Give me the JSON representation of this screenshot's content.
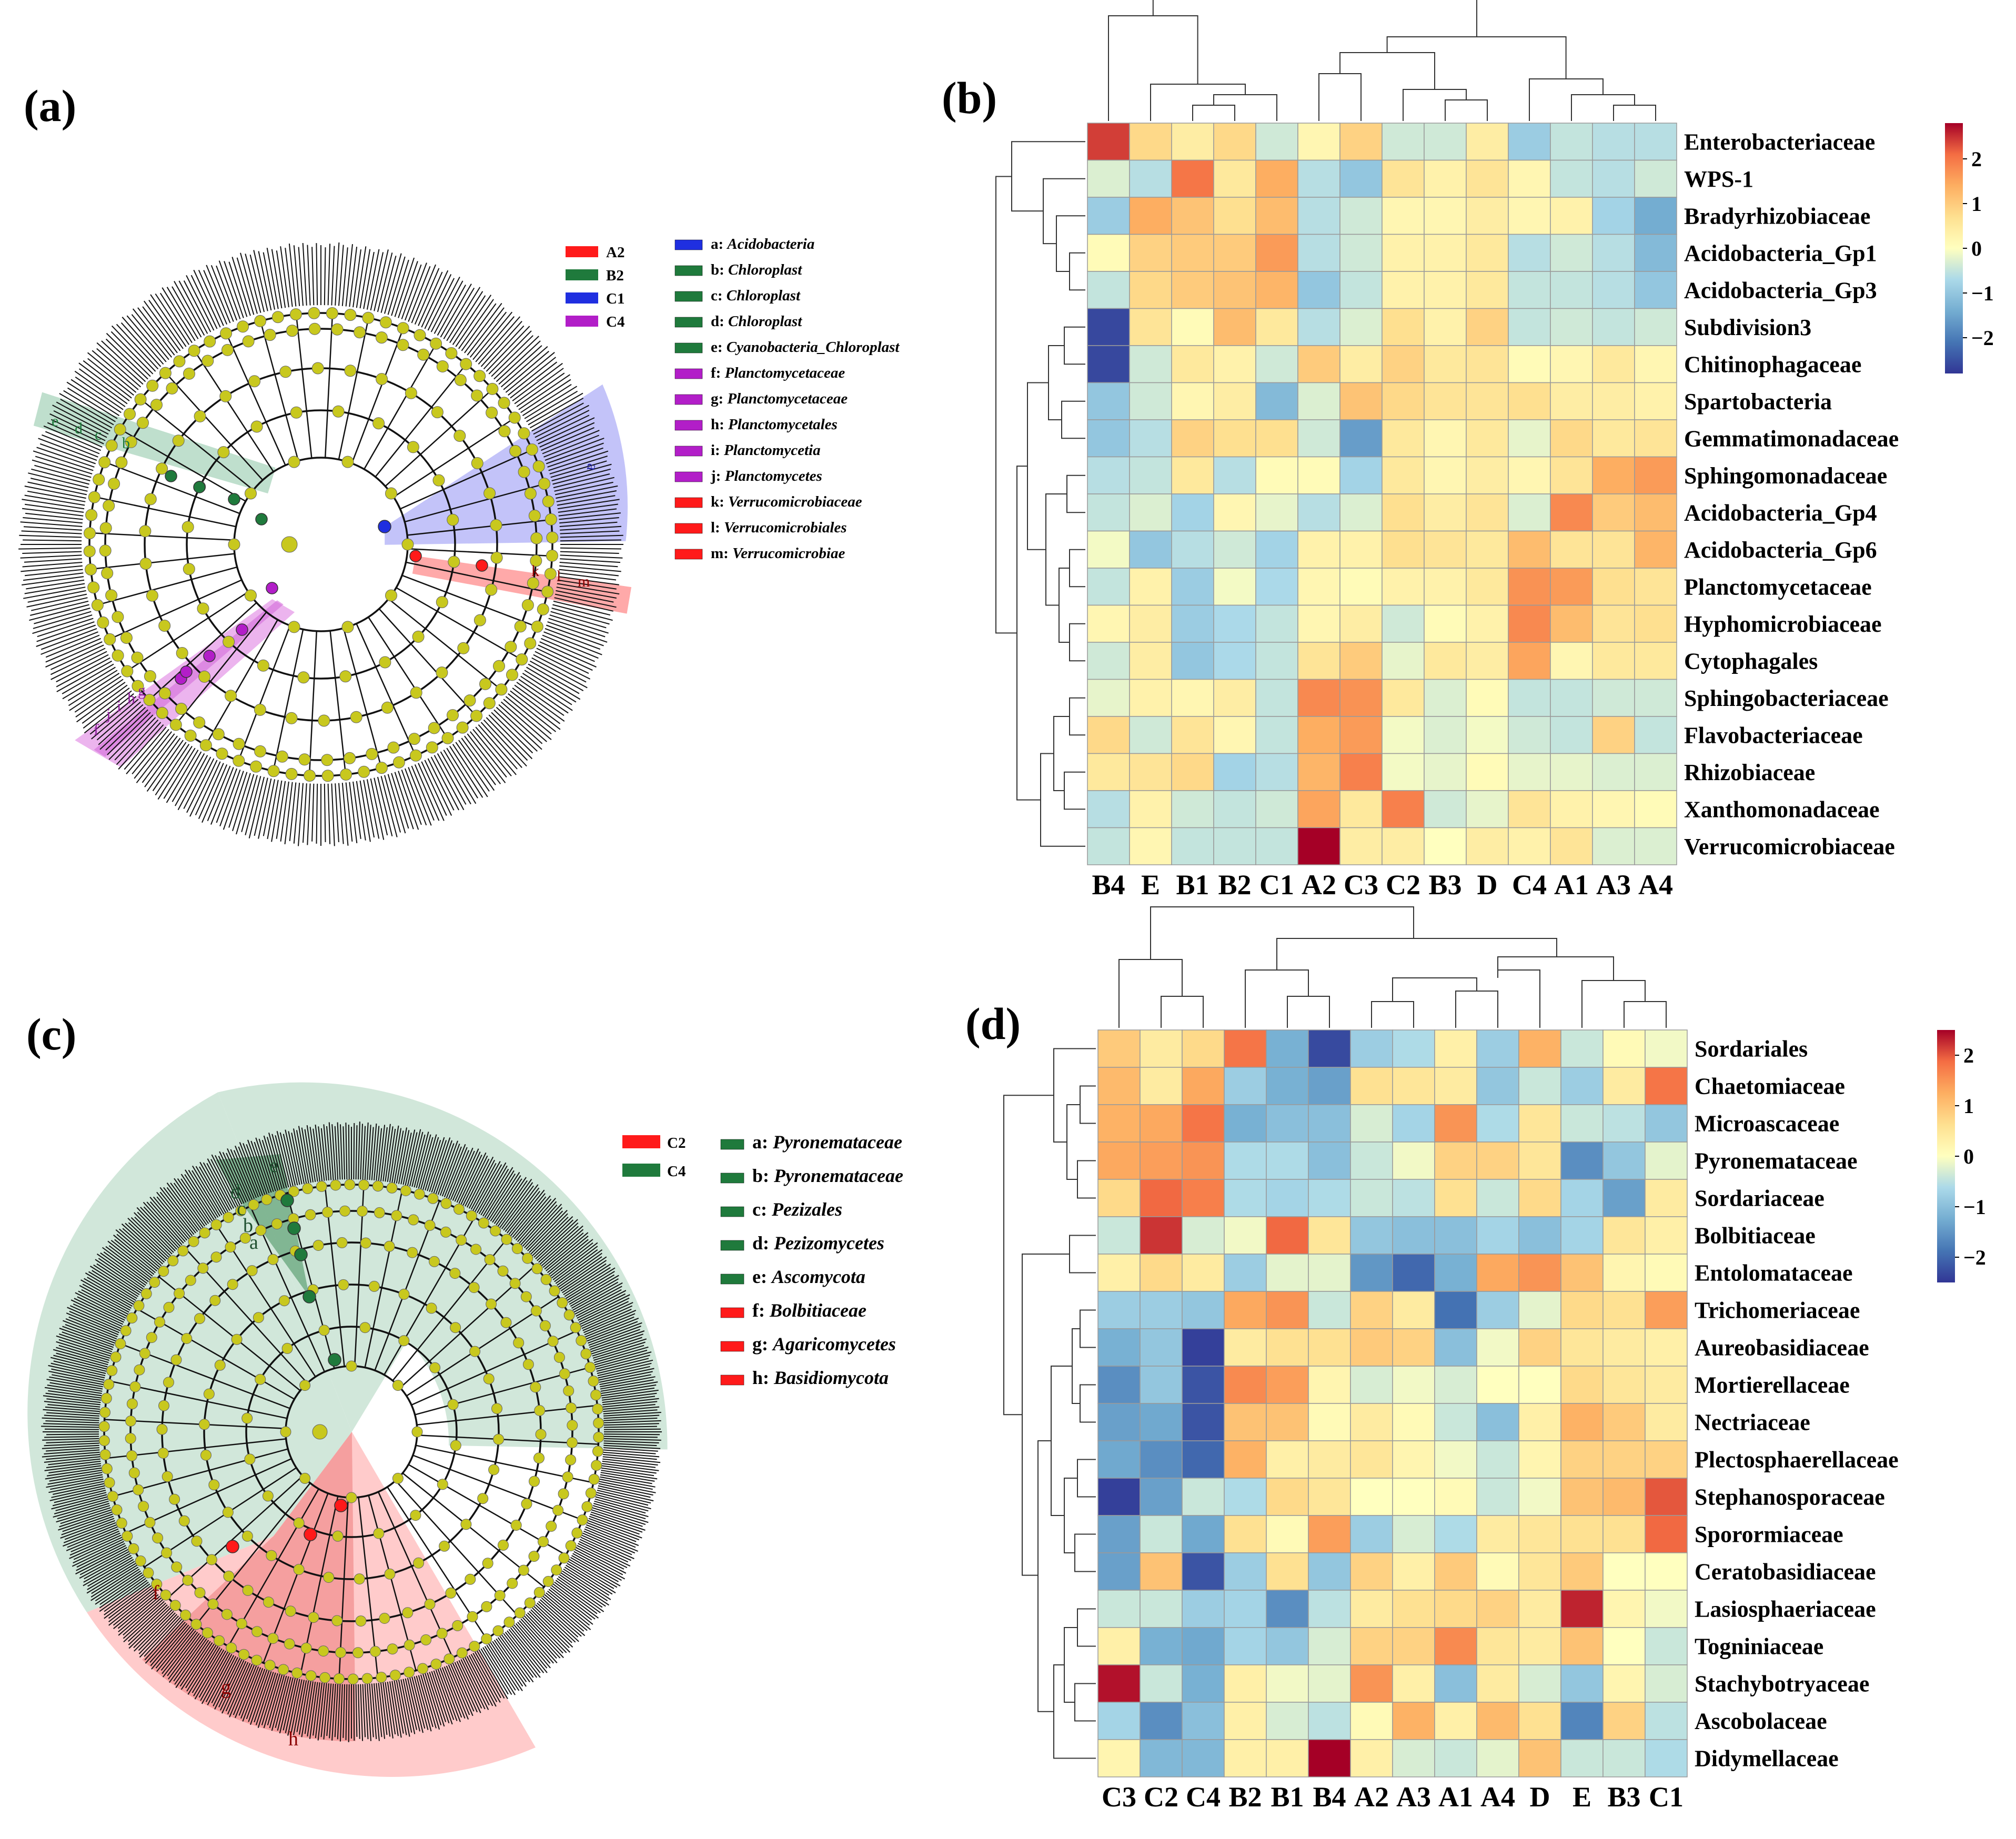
{
  "panels": {
    "a": "(a)",
    "b": "(b)",
    "c": "(c)",
    "d": "(d)"
  },
  "colors": {
    "red": "#ff1a1a",
    "green": "#1f7a3c",
    "blue": "#1f2fe0",
    "magenta": "#b21ec8",
    "node": "#c8c81e"
  },
  "panel_a": {
    "group_legend": [
      {
        "label": "A2",
        "color": "#ff1a1a"
      },
      {
        "label": "B2",
        "color": "#1f7a3c"
      },
      {
        "label": "C1",
        "color": "#1f2fe0"
      },
      {
        "label": "C4",
        "color": "#b21ec8"
      }
    ],
    "taxa_legend": [
      {
        "key": "a:",
        "name": "Acidobacteria",
        "color": "#1f2fe0"
      },
      {
        "key": "b:",
        "name": "Chloroplast",
        "color": "#1f7a3c"
      },
      {
        "key": "c:",
        "name": "Chloroplast",
        "color": "#1f7a3c"
      },
      {
        "key": "d:",
        "name": "Chloroplast",
        "color": "#1f7a3c"
      },
      {
        "key": "e:",
        "name": "Cyanobacteria_Chloroplast",
        "color": "#1f7a3c"
      },
      {
        "key": "f:",
        "name": "Planctomycetaceae",
        "color": "#b21ec8"
      },
      {
        "key": "g:",
        "name": "Planctomycetaceae",
        "color": "#b21ec8"
      },
      {
        "key": "h:",
        "name": "Planctomycetales",
        "color": "#b21ec8"
      },
      {
        "key": "i:",
        "name": "Planctomycetia",
        "color": "#b21ec8"
      },
      {
        "key": "j:",
        "name": "Planctomycetes",
        "color": "#b21ec8"
      },
      {
        "key": "k:",
        "name": "Verrucomicrobiaceae",
        "color": "#ff1a1a"
      },
      {
        "key": "l:",
        "name": "Verrucomicrobiales",
        "color": "#ff1a1a"
      },
      {
        "key": "m:",
        "name": "Verrucomicrobiae",
        "color": "#ff1a1a"
      }
    ],
    "letters": [
      "a",
      "b",
      "c",
      "d",
      "e",
      "f",
      "g",
      "h",
      "i",
      "j",
      "k",
      "l",
      "m"
    ]
  },
  "panel_c": {
    "group_legend": [
      {
        "label": "C2",
        "color": "#ff1a1a"
      },
      {
        "label": "C4",
        "color": "#1f7a3c"
      }
    ],
    "taxa_legend": [
      {
        "key": "a:",
        "name": "Pyronemataceae",
        "color": "#1f7a3c"
      },
      {
        "key": "b:",
        "name": "Pyronemataceae",
        "color": "#1f7a3c"
      },
      {
        "key": "c:",
        "name": "Pezizales",
        "color": "#1f7a3c"
      },
      {
        "key": "d:",
        "name": "Pezizomycetes",
        "color": "#1f7a3c"
      },
      {
        "key": "e:",
        "name": "Ascomycota",
        "color": "#1f7a3c"
      },
      {
        "key": "f:",
        "name": "Bolbitiaceae",
        "color": "#ff1a1a"
      },
      {
        "key": "g:",
        "name": "Agaricomycetes",
        "color": "#ff1a1a"
      },
      {
        "key": "h:",
        "name": "Basidiomycota",
        "color": "#ff1a1a"
      }
    ],
    "letters": [
      "a",
      "b",
      "c",
      "d",
      "e",
      "f",
      "g",
      "h"
    ]
  },
  "chart_data": [
    {
      "type": "heatmap",
      "panel": "(b)",
      "columns": [
        "B4",
        "E",
        "B1",
        "B2",
        "C1",
        "A2",
        "C3",
        "C2",
        "B3",
        "D",
        "C4",
        "A1",
        "A3",
        "A4"
      ],
      "rows": [
        "Enterobacteriaceae",
        "WPS-1",
        "Bradyrhizobiaceae",
        "Acidobacteria_Gp1",
        "Acidobacteria_Gp3",
        "Subdivision3",
        "Chitinophagaceae",
        "Spartobacteria",
        "Gemmatimonadaceae",
        "Sphingomonadaceae",
        "Acidobacteria_Gp4",
        "Acidobacteria_Gp6",
        "Planctomycetaceae",
        "Hyphomicrobiaceae",
        "Cytophagales",
        "Sphingobacteriaceae",
        "Flavobacteriaceae",
        "Rhizobiaceae",
        "Xanthomonadaceae",
        "Verrucomicrobiaceae"
      ],
      "values": [
        [
          2.4,
          0.8,
          0.4,
          0.8,
          -0.4,
          0.2,
          0.9,
          -0.4,
          -0.4,
          0.4,
          -0.9,
          -0.5,
          -0.6,
          -0.6
        ],
        [
          -0.3,
          -0.6,
          2.0,
          0.5,
          1.4,
          -0.6,
          -1.0,
          0.6,
          0.3,
          0.6,
          0.2,
          -0.5,
          -0.6,
          -0.4
        ],
        [
          -0.9,
          1.4,
          1.1,
          0.7,
          1.2,
          -0.6,
          -0.4,
          0.2,
          0.2,
          0.4,
          0.2,
          0.3,
          -0.8,
          -1.4
        ],
        [
          0.1,
          0.9,
          1.0,
          1.0,
          1.6,
          -0.6,
          -0.4,
          0.3,
          0.3,
          0.5,
          -0.6,
          -0.4,
          -0.6,
          -1.2
        ],
        [
          -0.5,
          0.8,
          1.0,
          1.1,
          1.3,
          -1.0,
          -0.5,
          0.3,
          0.3,
          0.5,
          -0.5,
          -0.5,
          -0.6,
          -1.0
        ],
        [
          -2.6,
          0.6,
          0.1,
          1.2,
          0.5,
          -0.6,
          -0.3,
          0.7,
          0.3,
          0.9,
          -0.5,
          -0.4,
          -0.5,
          -0.4
        ],
        [
          -2.6,
          -0.4,
          0.5,
          0.3,
          -0.4,
          1.0,
          0.4,
          0.9,
          0.5,
          0.6,
          0.1,
          0.2,
          0.5,
          0.2
        ],
        [
          -1.0,
          -0.4,
          0.2,
          0.4,
          -1.2,
          -0.3,
          1.1,
          0.8,
          0.6,
          0.6,
          0.7,
          0.4,
          0.4,
          0.3
        ],
        [
          -1.0,
          -0.6,
          0.9,
          0.7,
          0.7,
          -0.4,
          -1.6,
          0.5,
          0.2,
          0.5,
          -0.2,
          0.8,
          0.5,
          0.6
        ],
        [
          -0.6,
          -0.5,
          0.5,
          -0.6,
          0.1,
          0.1,
          -0.8,
          0.5,
          0.2,
          0.4,
          0.2,
          0.6,
          1.4,
          1.6
        ],
        [
          -0.5,
          -0.3,
          -0.8,
          0.2,
          -0.2,
          -0.6,
          -0.3,
          0.7,
          0.4,
          0.6,
          -0.3,
          1.8,
          1.0,
          1.2
        ],
        [
          -0.1,
          -1.0,
          -0.6,
          -0.4,
          -0.8,
          0.3,
          0.3,
          0.7,
          0.6,
          0.5,
          1.2,
          0.6,
          0.6,
          1.3
        ],
        [
          -0.5,
          0.3,
          -0.9,
          -0.1,
          -0.7,
          0.2,
          0.1,
          0.3,
          0.3,
          0.5,
          1.7,
          1.6,
          0.7,
          0.6
        ],
        [
          0.2,
          0.4,
          -0.9,
          -0.7,
          -0.5,
          0.2,
          0.4,
          -0.4,
          0.1,
          0.3,
          1.8,
          1.2,
          0.6,
          0.7
        ],
        [
          -0.4,
          0.4,
          -1.0,
          -0.7,
          -0.5,
          0.6,
          1.0,
          -0.2,
          0.5,
          0.4,
          1.5,
          0.2,
          0.5,
          0.5
        ],
        [
          -0.2,
          0.3,
          0.2,
          0.4,
          -0.5,
          1.8,
          1.7,
          0.5,
          -0.3,
          0.1,
          -0.5,
          -0.5,
          -0.4,
          -0.4
        ],
        [
          0.8,
          -0.4,
          0.6,
          0.2,
          -0.5,
          1.4,
          1.6,
          -0.1,
          -0.3,
          -0.1,
          -0.4,
          -0.5,
          0.9,
          -0.5
        ],
        [
          0.5,
          0.6,
          0.8,
          -0.8,
          -0.6,
          1.3,
          1.9,
          -0.1,
          -0.2,
          0.1,
          -0.2,
          -0.2,
          -0.3,
          -0.3
        ],
        [
          -0.6,
          0.3,
          -0.4,
          -0.5,
          -0.4,
          1.5,
          0.5,
          1.9,
          -0.4,
          -0.2,
          0.6,
          0.3,
          0.2,
          0.1
        ],
        [
          -0.5,
          0.2,
          -0.5,
          -0.5,
          -0.5,
          2.8,
          0.4,
          0.4,
          0.0,
          0.4,
          0.3,
          0.6,
          -0.3,
          -0.3
        ]
      ],
      "colorbar": {
        "ticks": [
          2,
          1,
          0,
          -1,
          -2
        ],
        "tick_labels": [
          "2",
          "1",
          "0",
          "−1",
          "−2"
        ],
        "range": [
          -2.8,
          2.8
        ]
      }
    },
    {
      "type": "heatmap",
      "panel": "(d)",
      "columns": [
        "C3",
        "C2",
        "C4",
        "B2",
        "B1",
        "B4",
        "A2",
        "A3",
        "A1",
        "A4",
        "D",
        "E",
        "B3",
        "C1"
      ],
      "rows": [
        "Sordariales",
        "Chaetomiaceae",
        "Microascaceae",
        "Pyronemataceae",
        "Sordariaceae",
        "Bolbitiaceae",
        "Entolomataceae",
        "Trichomeriaceae",
        "Aureobasidiaceae",
        "Mortierellaceae",
        "Nectriaceae",
        "Plectosphaerellaceae",
        "Stephanosporaceae",
        "Sporormiaceae",
        "Ceratobasidiaceae",
        "Lasiosphaeriaceae",
        "Togniniaceae",
        "Stachybotryaceae",
        "Ascobolaceae",
        "Didymellaceae"
      ],
      "values": [
        [
          0.9,
          0.4,
          0.7,
          1.8,
          -1.2,
          -2.3,
          -0.8,
          -0.6,
          0.3,
          -0.8,
          1.2,
          -0.4,
          0.1,
          -0.1
        ],
        [
          1.1,
          0.4,
          1.3,
          -0.8,
          -1.2,
          -1.4,
          0.6,
          0.5,
          0.4,
          -0.9,
          -0.4,
          -0.8,
          0.4,
          1.8
        ],
        [
          1.2,
          1.3,
          1.8,
          -1.2,
          -1.0,
          -1.0,
          -0.3,
          -0.7,
          1.5,
          -0.6,
          0.5,
          -0.4,
          -0.5,
          -0.9
        ],
        [
          1.3,
          1.4,
          1.5,
          -0.6,
          -0.6,
          -1.0,
          -0.4,
          -0.1,
          0.8,
          0.8,
          0.5,
          -1.6,
          -0.9,
          -0.2
        ],
        [
          0.7,
          1.9,
          1.7,
          -0.6,
          -0.7,
          -0.6,
          -0.4,
          -0.5,
          0.6,
          -0.4,
          0.7,
          -0.7,
          -1.4,
          0.4
        ],
        [
          -0.4,
          2.2,
          -0.3,
          -0.1,
          1.9,
          0.5,
          -0.9,
          -1.0,
          -1.0,
          -0.7,
          -1.0,
          -0.7,
          0.5,
          0.3
        ],
        [
          0.3,
          0.7,
          0.4,
          -0.8,
          -0.2,
          -0.2,
          -1.5,
          -2.0,
          -1.2,
          1.3,
          1.5,
          1.0,
          0.2,
          0.1
        ],
        [
          -0.8,
          -0.8,
          -0.9,
          1.3,
          1.5,
          -0.4,
          0.8,
          0.4,
          -1.9,
          -0.8,
          -0.2,
          0.7,
          0.6,
          1.4
        ],
        [
          -1.2,
          -0.9,
          -2.4,
          0.4,
          0.6,
          0.6,
          0.9,
          0.8,
          -1.0,
          -0.1,
          0.8,
          0.5,
          0.4,
          0.3
        ],
        [
          -1.6,
          -0.9,
          -2.2,
          1.6,
          1.4,
          0.2,
          -0.3,
          -0.1,
          -0.3,
          0.0,
          0.0,
          0.7,
          0.5,
          0.4
        ],
        [
          -1.4,
          -1.3,
          -2.2,
          1.0,
          1.0,
          0.1,
          0.4,
          0.1,
          -0.4,
          -1.0,
          0.3,
          1.2,
          0.9,
          0.4
        ],
        [
          -1.3,
          -1.6,
          -2.0,
          1.2,
          0.3,
          0.4,
          0.5,
          0.2,
          -0.1,
          -0.4,
          0.2,
          0.8,
          0.8,
          0.8
        ],
        [
          -2.4,
          -1.4,
          -0.4,
          -0.6,
          0.7,
          0.5,
          0.0,
          0.0,
          0.1,
          -0.4,
          -0.1,
          1.0,
          1.1,
          2.0
        ],
        [
          -1.4,
          -0.4,
          -1.3,
          0.6,
          0.1,
          1.4,
          -0.8,
          -0.3,
          -0.6,
          0.4,
          0.5,
          0.6,
          0.6,
          1.9
        ],
        [
          -1.4,
          1.0,
          -2.2,
          -0.8,
          0.6,
          -0.9,
          0.8,
          0.3,
          0.9,
          0.1,
          0.5,
          0.9,
          0.0,
          0.0
        ],
        [
          -0.4,
          -0.4,
          -0.8,
          -0.7,
          -1.6,
          -0.5,
          0.4,
          0.6,
          0.7,
          0.8,
          0.4,
          2.3,
          0.2,
          -0.1
        ],
        [
          0.3,
          -1.2,
          -1.3,
          -0.7,
          -0.9,
          -0.3,
          0.8,
          0.8,
          1.6,
          0.5,
          0.4,
          1.0,
          0.0,
          -0.4
        ],
        [
          2.4,
          -0.4,
          -1.2,
          0.3,
          -0.1,
          -0.2,
          1.5,
          0.3,
          -1.0,
          0.4,
          -0.3,
          -0.9,
          0.2,
          -0.3
        ],
        [
          -0.7,
          -1.6,
          -1.0,
          0.3,
          -0.3,
          -0.5,
          0.1,
          1.2,
          0.3,
          1.1,
          0.6,
          -1.7,
          0.8,
          -0.5
        ],
        [
          0.2,
          -1.1,
          -1.1,
          0.3,
          0.3,
          2.9,
          0.3,
          -0.3,
          -0.4,
          -0.2,
          1.0,
          -0.4,
          -0.4,
          -0.6
        ]
      ],
      "colorbar": {
        "ticks": [
          2,
          1,
          0,
          -1,
          -2
        ],
        "tick_labels": [
          "2",
          "1",
          "0",
          "−1",
          "−2"
        ],
        "range": [
          -2.5,
          2.5
        ]
      }
    }
  ]
}
